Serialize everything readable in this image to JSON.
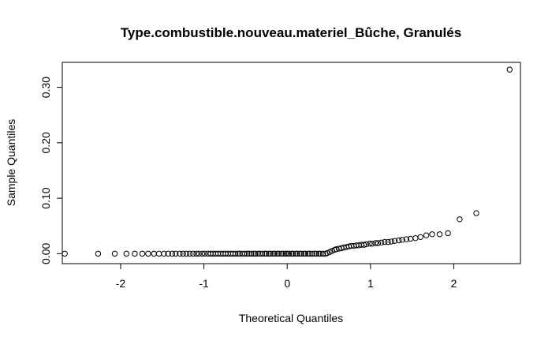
{
  "chart_data": {
    "type": "scatter",
    "title": "Type.combustible.nouveau.materiel_Bûche, Granulés",
    "xlabel": "Theoretical Quantiles",
    "ylabel": "Sample Quantiles",
    "xlim": [
      -2.7,
      2.8
    ],
    "ylim": [
      -0.018,
      0.345
    ],
    "x_ticks": [
      -2,
      -1,
      0,
      1,
      2
    ],
    "x_tick_labels": [
      "-2",
      "-1",
      "0",
      "1",
      "2"
    ],
    "y_ticks": [
      0.0,
      0.1,
      0.2,
      0.3
    ],
    "y_tick_labels": [
      "0.00",
      "0.10",
      "0.20",
      "0.30"
    ],
    "grid": false,
    "marker": "open-circle",
    "series": [
      {
        "points": [
          [
            -2.67,
            0.0
          ],
          [
            -2.27,
            0.0
          ],
          [
            -2.07,
            0.0
          ],
          [
            -1.93,
            0.0
          ],
          [
            -1.83,
            0.0
          ],
          [
            -1.74,
            0.0
          ],
          [
            -1.67,
            0.0
          ],
          [
            -1.6,
            0.0
          ],
          [
            -1.54,
            0.0
          ],
          [
            -1.48,
            0.0
          ],
          [
            -1.43,
            0.0
          ],
          [
            -1.38,
            0.0
          ],
          [
            -1.34,
            0.0
          ],
          [
            -1.29,
            0.0
          ],
          [
            -1.25,
            0.0
          ],
          [
            -1.21,
            0.0
          ],
          [
            -1.17,
            0.0
          ],
          [
            -1.13,
            0.0
          ],
          [
            -1.09,
            0.0
          ],
          [
            -1.06,
            0.0
          ],
          [
            -1.02,
            0.0
          ],
          [
            -0.99,
            0.0
          ],
          [
            -0.95,
            0.0
          ],
          [
            -0.92,
            0.0
          ],
          [
            -0.89,
            0.0
          ],
          [
            -0.86,
            0.0
          ],
          [
            -0.83,
            0.0
          ],
          [
            -0.8,
            0.0
          ],
          [
            -0.77,
            0.0
          ],
          [
            -0.74,
            0.0
          ],
          [
            -0.71,
            0.0
          ],
          [
            -0.68,
            0.0
          ],
          [
            -0.65,
            0.0
          ],
          [
            -0.62,
            0.0
          ],
          [
            -0.59,
            0.0
          ],
          [
            -0.57,
            0.0
          ],
          [
            -0.54,
            0.0
          ],
          [
            -0.51,
            0.0
          ],
          [
            -0.48,
            0.0
          ],
          [
            -0.46,
            0.0
          ],
          [
            -0.43,
            0.0
          ],
          [
            -0.4,
            0.0
          ],
          [
            -0.38,
            0.0
          ],
          [
            -0.35,
            0.0
          ],
          [
            -0.33,
            0.0
          ],
          [
            -0.3,
            0.0
          ],
          [
            -0.27,
            0.0
          ],
          [
            -0.25,
            0.0
          ],
          [
            -0.22,
            0.0
          ],
          [
            -0.2,
            0.0
          ],
          [
            -0.17,
            0.0
          ],
          [
            -0.15,
            0.0
          ],
          [
            -0.12,
            0.0
          ],
          [
            -0.1,
            0.0
          ],
          [
            -0.07,
            0.0
          ],
          [
            -0.05,
            0.0
          ],
          [
            -0.02,
            0.0
          ],
          [
            0.0,
            0.0
          ],
          [
            0.02,
            0.0
          ],
          [
            0.05,
            0.0
          ],
          [
            0.07,
            0.0
          ],
          [
            0.1,
            0.0
          ],
          [
            0.12,
            0.0
          ],
          [
            0.15,
            0.0
          ],
          [
            0.17,
            0.0
          ],
          [
            0.2,
            0.0
          ],
          [
            0.22,
            0.0
          ],
          [
            0.25,
            0.0
          ],
          [
            0.27,
            0.0
          ],
          [
            0.3,
            0.0
          ],
          [
            0.33,
            0.0
          ],
          [
            0.35,
            0.0
          ],
          [
            0.38,
            0.0
          ],
          [
            0.4,
            0.0
          ],
          [
            0.43,
            0.0
          ],
          [
            0.46,
            0.0
          ],
          [
            0.48,
            0.001
          ],
          [
            0.51,
            0.003
          ],
          [
            0.54,
            0.005
          ],
          [
            0.57,
            0.007
          ],
          [
            0.59,
            0.008
          ],
          [
            0.62,
            0.009
          ],
          [
            0.65,
            0.01
          ],
          [
            0.68,
            0.011
          ],
          [
            0.71,
            0.012
          ],
          [
            0.74,
            0.013
          ],
          [
            0.77,
            0.014
          ],
          [
            0.8,
            0.014
          ],
          [
            0.83,
            0.015
          ],
          [
            0.86,
            0.015
          ],
          [
            0.89,
            0.016
          ],
          [
            0.92,
            0.016
          ],
          [
            0.95,
            0.017
          ],
          [
            0.99,
            0.018
          ],
          [
            1.02,
            0.018
          ],
          [
            1.06,
            0.019
          ],
          [
            1.09,
            0.019
          ],
          [
            1.13,
            0.02
          ],
          [
            1.17,
            0.021
          ],
          [
            1.21,
            0.021
          ],
          [
            1.25,
            0.022
          ],
          [
            1.29,
            0.023
          ],
          [
            1.34,
            0.024
          ],
          [
            1.38,
            0.025
          ],
          [
            1.43,
            0.026
          ],
          [
            1.48,
            0.027
          ],
          [
            1.54,
            0.028
          ],
          [
            1.6,
            0.03
          ],
          [
            1.67,
            0.033
          ],
          [
            1.74,
            0.035
          ],
          [
            1.83,
            0.035
          ],
          [
            1.93,
            0.037
          ],
          [
            2.07,
            0.062
          ],
          [
            2.27,
            0.073
          ],
          [
            2.67,
            0.332
          ]
        ]
      }
    ]
  }
}
